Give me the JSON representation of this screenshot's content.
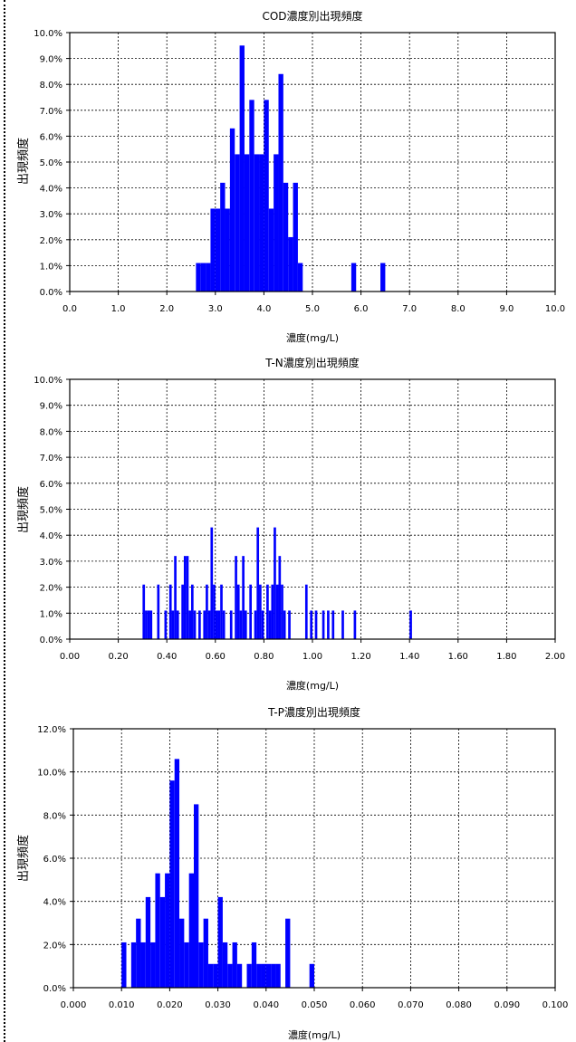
{
  "chart_data": [
    {
      "type": "bar",
      "title": "COD濃度別出現頻度",
      "xlabel": "濃度(mg/L)",
      "ylabel": "出現頻度",
      "xlim": [
        0,
        10
      ],
      "ylim": [
        0,
        10
      ],
      "bin_width": 0.1,
      "x_ticks": [
        "0.0",
        "1.0",
        "2.0",
        "3.0",
        "4.0",
        "5.0",
        "6.0",
        "7.0",
        "8.0",
        "9.0",
        "10.0"
      ],
      "y_ticks": [
        "0.0%",
        "1.0%",
        "2.0%",
        "3.0%",
        "4.0%",
        "5.0%",
        "6.0%",
        "7.0%",
        "8.0%",
        "9.0%",
        "10.0%"
      ],
      "bar_color": "#0000ff",
      "grid": "dashed",
      "x": [
        2.6,
        2.7,
        2.8,
        2.9,
        3.0,
        3.1,
        3.2,
        3.3,
        3.4,
        3.5,
        3.6,
        3.7,
        3.8,
        3.9,
        4.0,
        4.1,
        4.2,
        4.3,
        4.4,
        4.5,
        4.6,
        4.7,
        5.8,
        6.4
      ],
      "values": [
        1.1,
        1.1,
        1.1,
        3.2,
        3.2,
        4.2,
        3.2,
        6.3,
        5.3,
        9.5,
        5.3,
        7.4,
        5.3,
        5.3,
        7.4,
        3.2,
        5.3,
        8.4,
        4.2,
        2.1,
        4.2,
        1.1,
        1.1,
        1.1
      ]
    },
    {
      "type": "bar",
      "title": "T-N濃度別出現頻度",
      "xlabel": "濃度(mg/L)",
      "ylabel": "出現頻度",
      "xlim": [
        0,
        2
      ],
      "ylim": [
        0,
        10
      ],
      "bin_width": 0.01,
      "x_ticks": [
        "0.00",
        "0.20",
        "0.40",
        "0.60",
        "0.80",
        "1.00",
        "1.20",
        "1.40",
        "1.60",
        "1.80",
        "2.00"
      ],
      "y_ticks": [
        "0.0%",
        "1.0%",
        "2.0%",
        "3.0%",
        "4.0%",
        "5.0%",
        "6.0%",
        "7.0%",
        "8.0%",
        "9.0%",
        "10.0%"
      ],
      "bar_color": "#0000ff",
      "grid": "dashed",
      "x": [
        0.3,
        0.31,
        0.32,
        0.33,
        0.36,
        0.39,
        0.41,
        0.42,
        0.43,
        0.44,
        0.46,
        0.47,
        0.48,
        0.49,
        0.5,
        0.51,
        0.53,
        0.55,
        0.56,
        0.57,
        0.58,
        0.59,
        0.6,
        0.61,
        0.62,
        0.63,
        0.66,
        0.68,
        0.69,
        0.7,
        0.71,
        0.72,
        0.74,
        0.76,
        0.77,
        0.78,
        0.79,
        0.81,
        0.82,
        0.83,
        0.84,
        0.85,
        0.86,
        0.87,
        0.88,
        0.9,
        0.97,
        0.99,
        1.01,
        1.04,
        1.06,
        1.08,
        1.12,
        1.17,
        1.4
      ],
      "values": [
        2.1,
        1.1,
        1.1,
        1.1,
        2.1,
        1.1,
        2.1,
        1.1,
        3.2,
        1.1,
        2.1,
        3.2,
        3.2,
        1.1,
        2.1,
        1.1,
        1.1,
        1.1,
        2.1,
        1.1,
        4.3,
        2.1,
        1.1,
        1.1,
        2.1,
        1.1,
        1.1,
        3.2,
        2.1,
        1.1,
        3.2,
        1.1,
        2.1,
        1.1,
        4.3,
        2.1,
        1.1,
        2.1,
        1.1,
        2.1,
        4.3,
        2.1,
        3.2,
        2.1,
        1.1,
        1.1,
        2.1,
        1.1,
        1.1,
        1.1,
        1.1,
        1.1,
        1.1,
        1.1,
        1.1
      ]
    },
    {
      "type": "bar",
      "title": "T-P濃度別出現頻度",
      "xlabel": "濃度(mg/L)",
      "ylabel": "出現頻度",
      "xlim": [
        0,
        0.1
      ],
      "ylim": [
        0,
        12
      ],
      "bin_width": 0.001,
      "x_ticks": [
        "0.000",
        "0.010",
        "0.020",
        "0.030",
        "0.040",
        "0.050",
        "0.060",
        "0.070",
        "0.080",
        "0.090",
        "0.100"
      ],
      "y_ticks": [
        "0.0%",
        "2.0%",
        "4.0%",
        "6.0%",
        "8.0%",
        "10.0%",
        "12.0%"
      ],
      "bar_color": "#0000ff",
      "grid": "dashed",
      "x": [
        0.01,
        0.012,
        0.013,
        0.014,
        0.015,
        0.016,
        0.017,
        0.018,
        0.019,
        0.02,
        0.021,
        0.022,
        0.023,
        0.024,
        0.025,
        0.026,
        0.027,
        0.028,
        0.029,
        0.03,
        0.031,
        0.032,
        0.033,
        0.034,
        0.036,
        0.037,
        0.038,
        0.039,
        0.04,
        0.041,
        0.042,
        0.044,
        0.049
      ],
      "values": [
        2.1,
        2.1,
        3.2,
        2.1,
        4.2,
        2.1,
        5.3,
        4.2,
        5.3,
        9.6,
        10.6,
        3.2,
        2.1,
        5.3,
        8.5,
        2.1,
        3.2,
        1.1,
        1.1,
        4.2,
        2.1,
        1.1,
        2.1,
        1.1,
        1.1,
        2.1,
        1.1,
        1.1,
        1.1,
        1.1,
        1.1,
        3.2,
        1.1
      ]
    }
  ]
}
